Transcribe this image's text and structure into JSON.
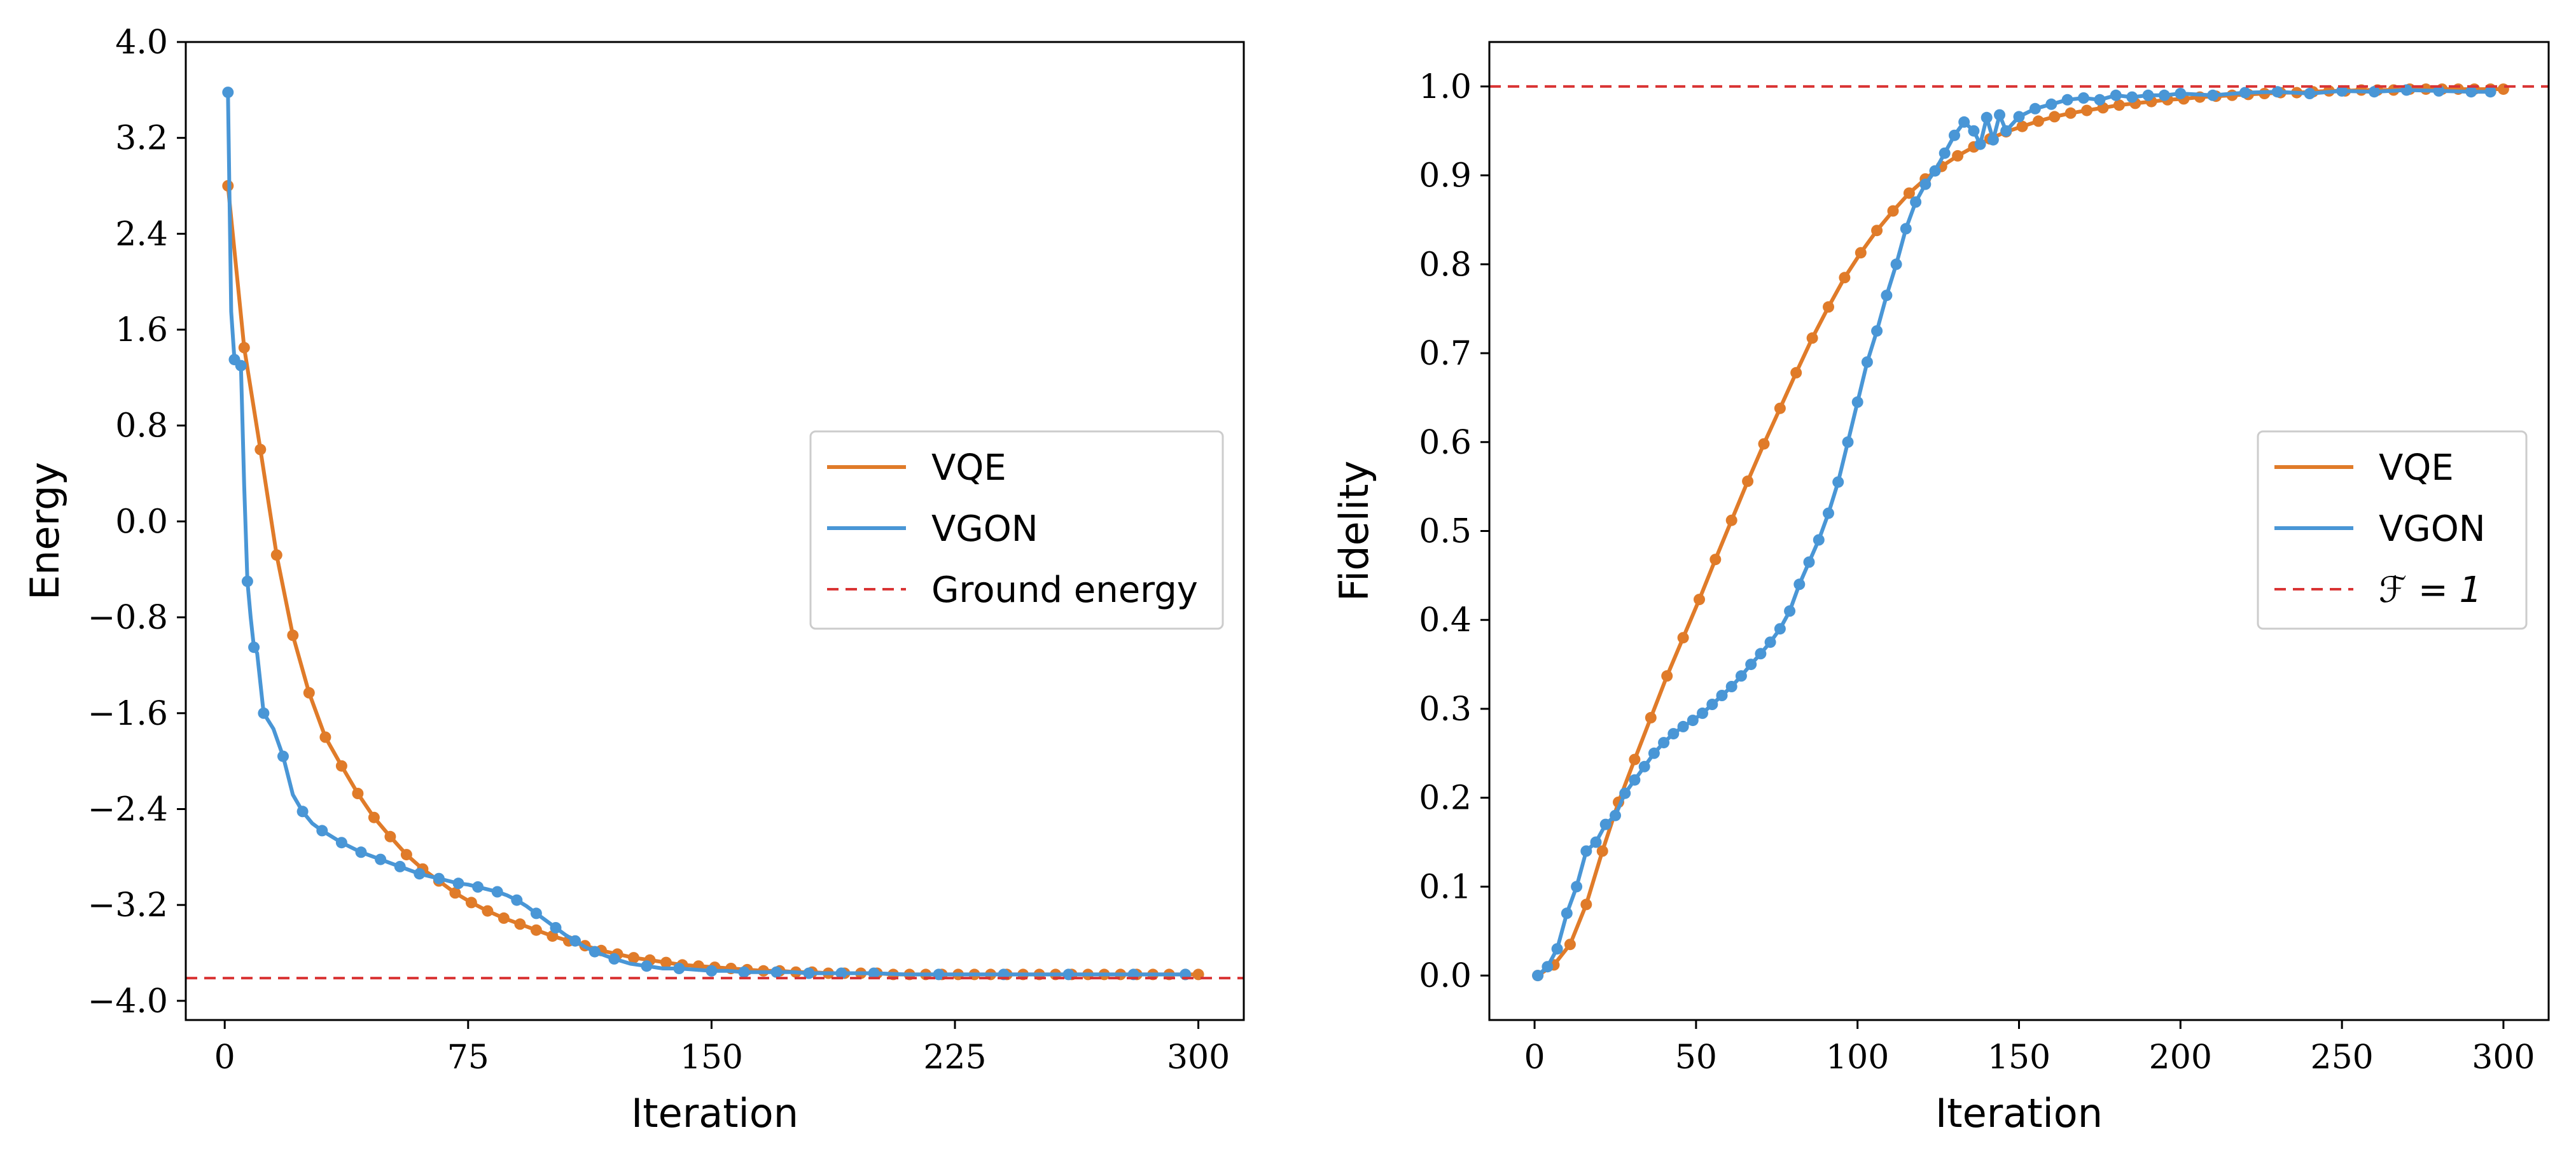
{
  "colors": {
    "vqe": "#e07b29",
    "vgon": "#4996d6",
    "reference": "#d93434"
  },
  "chart_data": [
    {
      "type": "line",
      "xlabel": "Iteration",
      "ylabel": "Energy",
      "xlim": [
        -12,
        314
      ],
      "ylim": [
        -4.16,
        4.0
      ],
      "xticks": [
        0,
        75,
        150,
        225,
        300
      ],
      "yticks": [
        4.0,
        3.2,
        2.4,
        1.6,
        0.8,
        0.0,
        -0.8,
        -1.6,
        -2.4,
        -3.2,
        -4.0
      ],
      "ytick_labels": [
        "4.0",
        "3.2",
        "2.4",
        "1.6",
        "0.8",
        "0.0",
        "−0.8",
        "−1.6",
        "−2.4",
        "−3.2",
        "−4.0"
      ],
      "grid": false,
      "legend_placement": "center-right",
      "reference_line": {
        "y": -3.81,
        "name": "Ground energy"
      },
      "series": [
        {
          "name": "VQE",
          "color": "#e07b29",
          "x": [
            1,
            6,
            11,
            16,
            21,
            26,
            31,
            36,
            41,
            46,
            51,
            56,
            61,
            66,
            71,
            76,
            81,
            86,
            91,
            96,
            101,
            106,
            111,
            116,
            121,
            126,
            131,
            136,
            141,
            146,
            151,
            156,
            161,
            166,
            171,
            176,
            181,
            186,
            191,
            196,
            201,
            206,
            211,
            216,
            221,
            226,
            231,
            236,
            241,
            246,
            251,
            256,
            261,
            266,
            271,
            276,
            281,
            286,
            291,
            296,
            300
          ],
          "y": [
            2.8,
            1.45,
            0.6,
            -0.28,
            -0.95,
            -1.43,
            -1.8,
            -2.04,
            -2.27,
            -2.47,
            -2.63,
            -2.78,
            -2.9,
            -3.0,
            -3.1,
            -3.18,
            -3.25,
            -3.31,
            -3.36,
            -3.41,
            -3.46,
            -3.5,
            -3.54,
            -3.58,
            -3.61,
            -3.64,
            -3.66,
            -3.68,
            -3.7,
            -3.71,
            -3.72,
            -3.73,
            -3.74,
            -3.75,
            -3.75,
            -3.76,
            -3.76,
            -3.77,
            -3.77,
            -3.77,
            -3.77,
            -3.78,
            -3.78,
            -3.78,
            -3.78,
            -3.78,
            -3.78,
            -3.78,
            -3.78,
            -3.78,
            -3.78,
            -3.78,
            -3.78,
            -3.78,
            -3.78,
            -3.78,
            -3.78,
            -3.78,
            -3.78,
            -3.78,
            -3.78
          ]
        },
        {
          "name": "VGON",
          "color": "#4996d6",
          "x": [
            1,
            2,
            3,
            4,
            5,
            6,
            7,
            8,
            9,
            10,
            12,
            15,
            18,
            21,
            24,
            27,
            30,
            33,
            36,
            39,
            42,
            45,
            48,
            51,
            54,
            57,
            60,
            63,
            66,
            69,
            72,
            75,
            78,
            81,
            84,
            87,
            90,
            93,
            96,
            99,
            102,
            105,
            108,
            111,
            114,
            117,
            120,
            125,
            130,
            135,
            140,
            145,
            150,
            155,
            160,
            165,
            170,
            175,
            180,
            185,
            190,
            195,
            200,
            210,
            220,
            230,
            240,
            250,
            260,
            270,
            280,
            290,
            296
          ],
          "y": [
            3.58,
            1.75,
            1.35,
            1.33,
            1.3,
            0.3,
            -0.5,
            -0.8,
            -1.05,
            -1.1,
            -1.6,
            -1.73,
            -1.96,
            -2.28,
            -2.42,
            -2.52,
            -2.58,
            -2.63,
            -2.68,
            -2.72,
            -2.76,
            -2.79,
            -2.82,
            -2.85,
            -2.88,
            -2.91,
            -2.94,
            -2.96,
            -2.98,
            -3.0,
            -3.02,
            -3.03,
            -3.05,
            -3.07,
            -3.09,
            -3.12,
            -3.16,
            -3.21,
            -3.27,
            -3.33,
            -3.39,
            -3.45,
            -3.5,
            -3.55,
            -3.59,
            -3.62,
            -3.65,
            -3.69,
            -3.71,
            -3.73,
            -3.73,
            -3.74,
            -3.75,
            -3.75,
            -3.76,
            -3.76,
            -3.76,
            -3.76,
            -3.77,
            -3.77,
            -3.77,
            -3.77,
            -3.77,
            -3.78,
            -3.78,
            -3.78,
            -3.78,
            -3.78,
            -3.78,
            -3.78,
            -3.78,
            -3.78,
            -3.78
          ],
          "marker_every": 2
        }
      ]
    },
    {
      "type": "line",
      "xlabel": "Iteration",
      "ylabel": "Fidelity",
      "xlim": [
        -14,
        314
      ],
      "ylim": [
        -0.05,
        1.05
      ],
      "xticks": [
        0,
        50,
        100,
        150,
        200,
        250,
        300
      ],
      "yticks": [
        0.0,
        0.1,
        0.2,
        0.3,
        0.4,
        0.5,
        0.6,
        0.7,
        0.8,
        0.9,
        1.0
      ],
      "ytick_labels": [
        "0.0",
        "0.1",
        "0.2",
        "0.3",
        "0.4",
        "0.5",
        "0.6",
        "0.7",
        "0.8",
        "0.9",
        "1.0"
      ],
      "grid": false,
      "legend_placement": "center-right",
      "reference_line": {
        "y": 1.0,
        "name": "ℱ = 1"
      },
      "series": [
        {
          "name": "VQE",
          "color": "#e07b29",
          "x": [
            1,
            6,
            11,
            16,
            21,
            26,
            31,
            36,
            41,
            46,
            51,
            56,
            61,
            66,
            71,
            76,
            81,
            86,
            91,
            96,
            101,
            106,
            111,
            116,
            121,
            126,
            131,
            136,
            141,
            146,
            151,
            156,
            161,
            166,
            171,
            176,
            181,
            186,
            191,
            196,
            201,
            206,
            211,
            216,
            221,
            226,
            231,
            236,
            241,
            246,
            251,
            256,
            261,
            266,
            271,
            276,
            281,
            286,
            291,
            296,
            300
          ],
          "y": [
            0.0,
            0.012,
            0.035,
            0.08,
            0.14,
            0.195,
            0.243,
            0.29,
            0.337,
            0.38,
            0.423,
            0.468,
            0.512,
            0.556,
            0.598,
            0.638,
            0.678,
            0.717,
            0.752,
            0.785,
            0.813,
            0.838,
            0.86,
            0.88,
            0.896,
            0.91,
            0.922,
            0.932,
            0.941,
            0.949,
            0.955,
            0.961,
            0.966,
            0.97,
            0.973,
            0.976,
            0.979,
            0.981,
            0.983,
            0.985,
            0.986,
            0.988,
            0.989,
            0.99,
            0.991,
            0.992,
            0.993,
            0.993,
            0.994,
            0.995,
            0.995,
            0.996,
            0.996,
            0.996,
            0.997,
            0.997,
            0.997,
            0.997,
            0.997,
            0.997,
            0.997
          ]
        },
        {
          "name": "VGON",
          "color": "#4996d6",
          "x": [
            1,
            4,
            7,
            10,
            13,
            16,
            19,
            22,
            25,
            28,
            31,
            34,
            37,
            40,
            43,
            46,
            49,
            52,
            55,
            58,
            61,
            64,
            67,
            70,
            73,
            76,
            79,
            82,
            85,
            88,
            91,
            94,
            97,
            100,
            103,
            106,
            109,
            112,
            115,
            118,
            121,
            124,
            127,
            130,
            133,
            136,
            138,
            140,
            142,
            144,
            146,
            150,
            155,
            160,
            165,
            170,
            175,
            180,
            185,
            190,
            195,
            200,
            210,
            220,
            230,
            240,
            250,
            260,
            270,
            280,
            290,
            296
          ],
          "y": [
            0.0,
            0.01,
            0.03,
            0.07,
            0.1,
            0.14,
            0.15,
            0.17,
            0.18,
            0.205,
            0.22,
            0.235,
            0.25,
            0.262,
            0.272,
            0.28,
            0.287,
            0.295,
            0.305,
            0.315,
            0.325,
            0.337,
            0.35,
            0.362,
            0.375,
            0.39,
            0.41,
            0.44,
            0.465,
            0.49,
            0.52,
            0.555,
            0.6,
            0.645,
            0.69,
            0.725,
            0.765,
            0.8,
            0.84,
            0.87,
            0.89,
            0.905,
            0.925,
            0.945,
            0.96,
            0.95,
            0.935,
            0.965,
            0.94,
            0.968,
            0.95,
            0.966,
            0.975,
            0.98,
            0.985,
            0.987,
            0.985,
            0.99,
            0.988,
            0.99,
            0.99,
            0.992,
            0.99,
            0.993,
            0.994,
            0.992,
            0.995,
            0.994,
            0.996,
            0.995,
            0.994,
            0.994
          ],
          "marker_every": 1
        }
      ]
    }
  ]
}
